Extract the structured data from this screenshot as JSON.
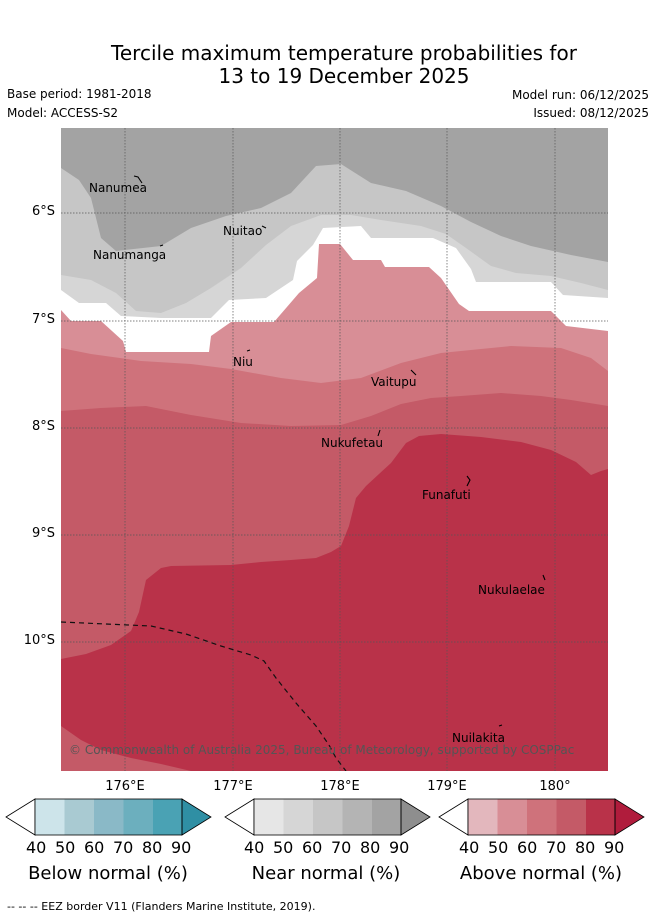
{
  "title_line1": "Tercile maximum temperature probabilities for",
  "title_line2": "13 to 19 December 2025",
  "base_period": "Base period: 1981-2018",
  "model": "Model: ACCESS-S2",
  "model_run": "Model run: 06/12/2025",
  "issued": "Issued: 08/12/2025",
  "lat_labels": [
    "6°S",
    "7°S",
    "8°S",
    "9°S",
    "10°S"
  ],
  "lon_labels": [
    "176°E",
    "177°E",
    "178°E",
    "179°E",
    "180°"
  ],
  "places": [
    "Nanumea",
    "Nuitao",
    "Nanumanga",
    "Niu",
    "Vaitupu",
    "Nukufetau",
    "Funafuti",
    "Nukulaelae",
    "Nuilakita"
  ],
  "copyright": "© Commonwealth of Australia 2025, Bureau of Meteorology, supported by COSPPac",
  "colorbars": {
    "ticks": [
      "40",
      "50",
      "60",
      "70",
      "80",
      "90"
    ],
    "below": {
      "title": "Below normal (%)",
      "colors": [
        "#cde4ea",
        "#a9cad2",
        "#8ab9c7",
        "#6cafbe",
        "#4aa2b4",
        "#2f8fa4"
      ]
    },
    "near": {
      "title": "Near normal (%)",
      "colors": [
        "#e6e6e6",
        "#d6d6d6",
        "#c6c6c6",
        "#b4b4b4",
        "#a3a3a3",
        "#8e8e8e"
      ]
    },
    "above": {
      "title": "Above normal (%)",
      "colors": [
        "#e3b7bd",
        "#d88e96",
        "#cf727b",
        "#c45a67",
        "#b93249",
        "#b01c3c"
      ]
    }
  },
  "footer": "--  --  -- EEZ border V11 (Flanders Marine Institute, 2019)."
}
